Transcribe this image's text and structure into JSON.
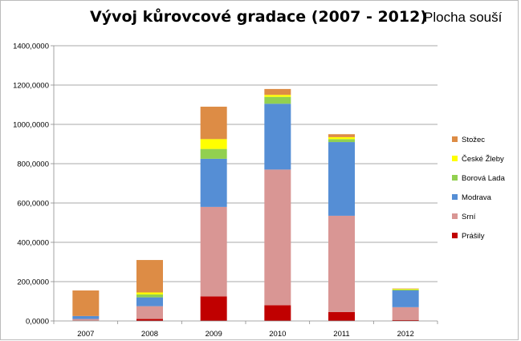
{
  "chart_data": {
    "type": "bar",
    "stacked": true,
    "title": "Vývoj kůrovcové gradace (2007 - 2012)",
    "subtitle": "Plocha souší",
    "xlabel": "",
    "ylabel": "",
    "categories": [
      "2007",
      "2008",
      "2009",
      "2010",
      "2011",
      "2012"
    ],
    "ylim": [
      0,
      1400
    ],
    "y_ticks": [
      0,
      200,
      400,
      600,
      800,
      1000,
      1200,
      1400
    ],
    "y_tick_labels": [
      "0,0000",
      "200,0000",
      "400,0000",
      "600,0000",
      "800,0000",
      "1000,0000",
      "1200,0000",
      "1400,0000"
    ],
    "grid": true,
    "legend_position": "right",
    "series": [
      {
        "name": "Prášily",
        "color": "#c00000",
        "values": [
          0,
          10,
          125,
          80,
          45,
          5
        ]
      },
      {
        "name": "Srní",
        "color": "#d99694",
        "values": [
          10,
          65,
          455,
          690,
          490,
          65
        ]
      },
      {
        "name": "Modrava",
        "color": "#558ed5",
        "values": [
          15,
          45,
          245,
          335,
          375,
          85
        ]
      },
      {
        "name": "Borová Lada",
        "color": "#92d050",
        "values": [
          0,
          15,
          50,
          35,
          15,
          5
        ]
      },
      {
        "name": "České Žleby",
        "color": "#ffff00",
        "values": [
          0,
          10,
          50,
          10,
          10,
          3
        ]
      },
      {
        "name": "Stožec",
        "color": "#dd8c45",
        "values": [
          130,
          165,
          165,
          30,
          15,
          2
        ]
      }
    ]
  }
}
